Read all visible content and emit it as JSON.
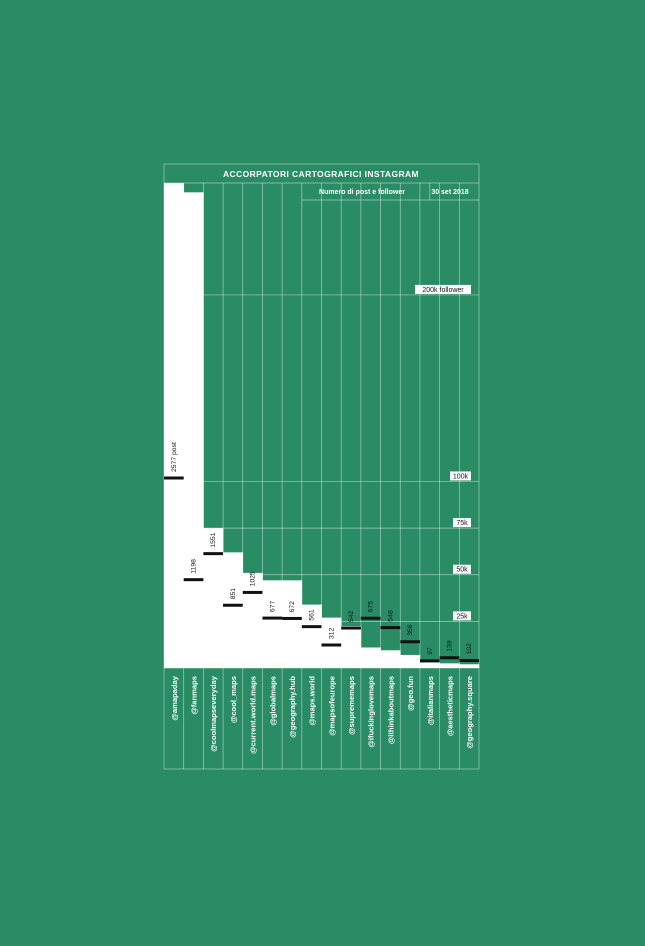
{
  "colors": {
    "background": "#2a8c65",
    "bar": "#ffffff",
    "grid": "rgba(255,255,255,0.55)",
    "marker": "#111111",
    "text": "#ffffff",
    "labelDark": "#111111"
  },
  "chart_data": {
    "type": "bar",
    "title": "ACCORPATORI CARTOGRAFICI INSTAGRAM",
    "subtitle": "Numero di post e follower",
    "date": "30 set 2018",
    "y_max_followers": 260000,
    "grid": true,
    "follower_ticks": [
      {
        "value": 25000,
        "label": "25k"
      },
      {
        "value": 50000,
        "label": "50k"
      },
      {
        "value": 75000,
        "label": "75k"
      },
      {
        "value": 100000,
        "label": "100k"
      },
      {
        "value": 200000,
        "label": "200k follower"
      }
    ],
    "categories": [
      "@amapaday",
      "@fanmaps",
      "@coolmapseveryday",
      "@cool_maps",
      "@current.world.maps",
      "@globalmaps",
      "@geography.hub",
      "@maps.world",
      "@mapsofeurope",
      "@suprememaps",
      "@ifuckinglovemaps",
      "@ithinkaboutmaps",
      "@geo.fun",
      "@italianmaps",
      "@aestheticmaps",
      "@geography.square"
    ],
    "series": [
      {
        "name": "follower",
        "values": [
          260000,
          255000,
          75000,
          62000,
          51000,
          47000,
          47000,
          34000,
          27000,
          22500,
          11000,
          9500,
          7000,
          3000,
          2500,
          2000
        ]
      },
      {
        "name": "post",
        "values": [
          2577,
          1198,
          1551,
          851,
          1025,
          677,
          672,
          561,
          312,
          542,
          675,
          548,
          356,
          97,
          139,
          102
        ],
        "labels": [
          "2577 post",
          "1198",
          "1551",
          "851",
          "1025",
          "677",
          "672",
          "561",
          "312",
          "542",
          "675",
          "548",
          "356",
          "97",
          "139",
          "102"
        ]
      }
    ]
  }
}
